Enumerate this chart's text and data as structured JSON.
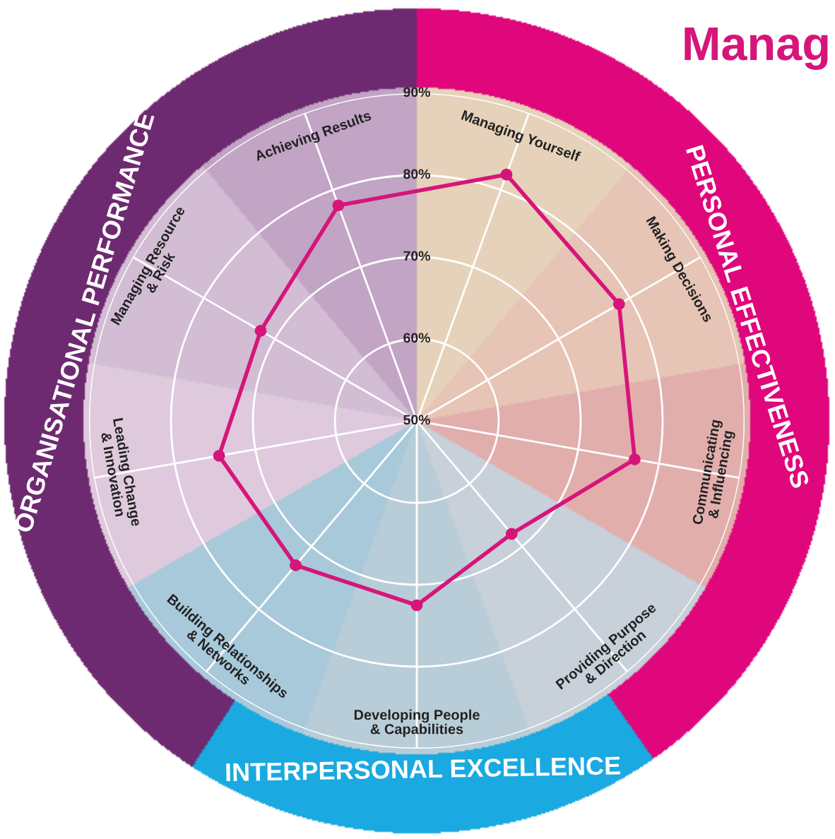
{
  "chart_data": {
    "type": "radar",
    "title": "Manag",
    "categories": [
      "Managing Yourself",
      "Making Decisions",
      "Communicating\n& Influencing",
      "Providing Purpose\n& Direction",
      "Developing People\n& Capabilities",
      "Building Relationships\n& Networks",
      "Leading Change\n& Innovation",
      "Managing Resource\n& Risk",
      "Achieving Results"
    ],
    "series": [
      {
        "color": "#d6157a",
        "values": [
          82,
          78.5,
          77,
          68,
          72.5,
          73,
          74.5,
          72,
          78
        ]
      }
    ],
    "ylim": [
      50,
      90
    ],
    "yticks": [
      {
        "value": 50,
        "label": "50%"
      },
      {
        "value": 60,
        "label": "60%"
      },
      {
        "value": 70,
        "label": "70%"
      },
      {
        "value": 80,
        "label": "80%"
      },
      {
        "value": 90,
        "label": "90%"
      }
    ],
    "grid": true,
    "marker": "circle",
    "annotations": [
      "PERSONAL EFFECTIVENESS",
      "INTERPERSONAL EXCELLENCE",
      "ORGANISATIONAL PERFORMANCE"
    ]
  }
}
